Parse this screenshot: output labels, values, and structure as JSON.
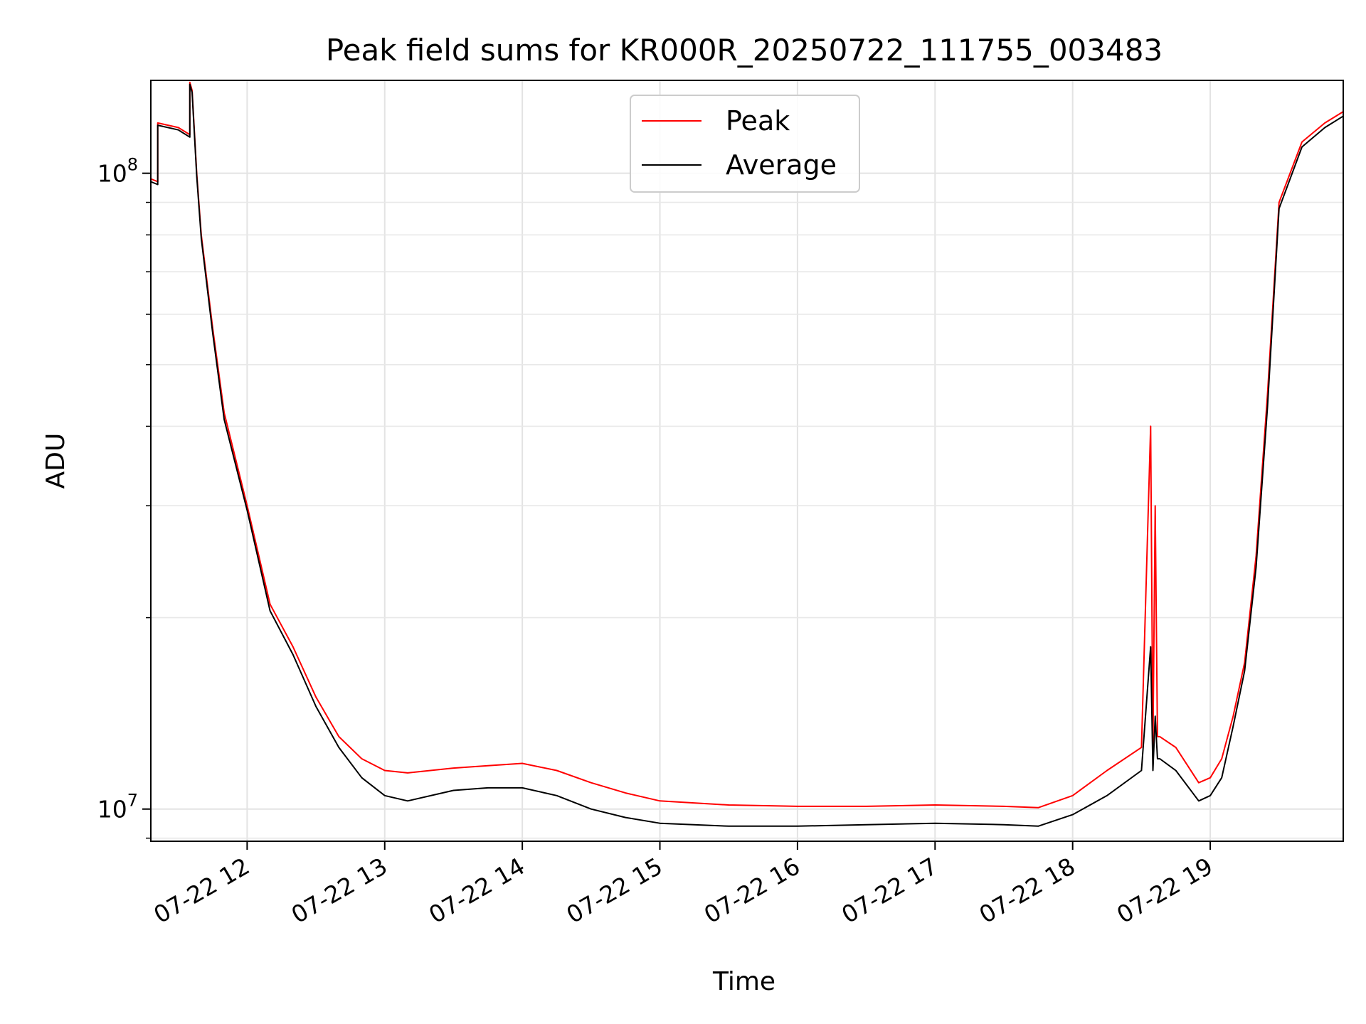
{
  "chart_data": {
    "type": "line",
    "title": "Peak field sums for KR000R_20250722_111755_003483",
    "xlabel": "Time",
    "ylabel": "ADU",
    "xlim": [
      "2025-07-22T11:18",
      "2025-07-22T19:58"
    ],
    "ylim": [
      8900000,
      140000000
    ],
    "yscale": "log",
    "grid": true,
    "legend": "top-center",
    "x_ticks": [
      {
        "t": "2025-07-22T12:00",
        "label": "07-22 12"
      },
      {
        "t": "2025-07-22T13:00",
        "label": "07-22 13"
      },
      {
        "t": "2025-07-22T14:00",
        "label": "07-22 14"
      },
      {
        "t": "2025-07-22T15:00",
        "label": "07-22 15"
      },
      {
        "t": "2025-07-22T16:00",
        "label": "07-22 16"
      },
      {
        "t": "2025-07-22T17:00",
        "label": "07-22 17"
      },
      {
        "t": "2025-07-22T18:00",
        "label": "07-22 18"
      },
      {
        "t": "2025-07-22T19:00",
        "label": "07-22 19"
      }
    ],
    "y_ticks": [
      {
        "value": 10000000,
        "base": "10",
        "exp": "7"
      },
      {
        "value": 100000000,
        "base": "10",
        "exp": "8"
      }
    ],
    "series": [
      {
        "name": "Peak",
        "color": "#ff0000",
        "x": [
          "2025-07-22T11:18",
          "2025-07-22T11:21",
          "2025-07-22T11:21",
          "2025-07-22T11:30",
          "2025-07-22T11:35",
          "2025-07-22T11:35",
          "2025-07-22T11:36",
          "2025-07-22T11:38",
          "2025-07-22T11:40",
          "2025-07-22T11:45",
          "2025-07-22T11:50",
          "2025-07-22T12:00",
          "2025-07-22T12:10",
          "2025-07-22T12:20",
          "2025-07-22T12:30",
          "2025-07-22T12:40",
          "2025-07-22T12:50",
          "2025-07-22T13:00",
          "2025-07-22T13:10",
          "2025-07-22T13:30",
          "2025-07-22T13:45",
          "2025-07-22T14:00",
          "2025-07-22T14:15",
          "2025-07-22T14:30",
          "2025-07-22T14:45",
          "2025-07-22T15:00",
          "2025-07-22T15:30",
          "2025-07-22T16:00",
          "2025-07-22T16:30",
          "2025-07-22T17:00",
          "2025-07-22T17:30",
          "2025-07-22T17:45",
          "2025-07-22T18:00",
          "2025-07-22T18:15",
          "2025-07-22T18:30",
          "2025-07-22T18:34",
          "2025-07-22T18:35",
          "2025-07-22T18:36",
          "2025-07-22T18:37",
          "2025-07-22T18:38",
          "2025-07-22T18:45",
          "2025-07-22T18:55",
          "2025-07-22T19:00",
          "2025-07-22T19:05",
          "2025-07-22T19:10",
          "2025-07-22T19:15",
          "2025-07-22T19:20",
          "2025-07-22T19:25",
          "2025-07-22T19:30",
          "2025-07-22T19:40",
          "2025-07-22T19:50",
          "2025-07-22T19:58"
        ],
        "y": [
          98000000,
          97000000,
          120000000,
          118000000,
          115000000,
          139000000,
          135000000,
          100000000,
          80000000,
          57000000,
          42000000,
          30000000,
          21000000,
          18000000,
          15000000,
          13000000,
          12000000,
          11500000,
          11400000,
          11600000,
          11700000,
          11800000,
          11500000,
          11000000,
          10600000,
          10300000,
          10150000,
          10100000,
          10100000,
          10150000,
          10100000,
          10050000,
          10500000,
          11500000,
          12500000,
          40000000,
          12500000,
          30000000,
          13000000,
          13000000,
          12500000,
          11000000,
          11200000,
          12000000,
          14000000,
          17000000,
          25000000,
          45000000,
          90000000,
          112000000,
          120000000,
          125000000
        ]
      },
      {
        "name": "Average",
        "color": "#000000",
        "x": [
          "2025-07-22T11:18",
          "2025-07-22T11:21",
          "2025-07-22T11:21",
          "2025-07-22T11:30",
          "2025-07-22T11:35",
          "2025-07-22T11:35",
          "2025-07-22T11:36",
          "2025-07-22T11:38",
          "2025-07-22T11:40",
          "2025-07-22T11:45",
          "2025-07-22T11:50",
          "2025-07-22T12:00",
          "2025-07-22T12:10",
          "2025-07-22T12:20",
          "2025-07-22T12:30",
          "2025-07-22T12:40",
          "2025-07-22T12:50",
          "2025-07-22T13:00",
          "2025-07-22T13:10",
          "2025-07-22T13:30",
          "2025-07-22T13:45",
          "2025-07-22T14:00",
          "2025-07-22T14:15",
          "2025-07-22T14:30",
          "2025-07-22T14:45",
          "2025-07-22T15:00",
          "2025-07-22T15:30",
          "2025-07-22T16:00",
          "2025-07-22T16:30",
          "2025-07-22T17:00",
          "2025-07-22T17:30",
          "2025-07-22T17:45",
          "2025-07-22T18:00",
          "2025-07-22T18:15",
          "2025-07-22T18:30",
          "2025-07-22T18:34",
          "2025-07-22T18:35",
          "2025-07-22T18:36",
          "2025-07-22T18:37",
          "2025-07-22T18:38",
          "2025-07-22T18:45",
          "2025-07-22T18:55",
          "2025-07-22T19:00",
          "2025-07-22T19:05",
          "2025-07-22T19:10",
          "2025-07-22T19:15",
          "2025-07-22T19:20",
          "2025-07-22T19:25",
          "2025-07-22T19:30",
          "2025-07-22T19:40",
          "2025-07-22T19:50",
          "2025-07-22T19:58"
        ],
        "y": [
          97000000,
          96000000,
          119000000,
          117000000,
          114000000,
          138000000,
          134000000,
          99000000,
          79000000,
          56000000,
          41000000,
          29500000,
          20500000,
          17500000,
          14500000,
          12500000,
          11200000,
          10500000,
          10300000,
          10700000,
          10800000,
          10800000,
          10500000,
          10000000,
          9700000,
          9500000,
          9400000,
          9400000,
          9450000,
          9500000,
          9450000,
          9400000,
          9800000,
          10500000,
          11500000,
          18000000,
          11500000,
          14000000,
          12000000,
          12000000,
          11500000,
          10300000,
          10500000,
          11200000,
          13500000,
          16500000,
          24000000,
          43000000,
          88000000,
          110000000,
          118000000,
          123000000
        ]
      }
    ]
  }
}
